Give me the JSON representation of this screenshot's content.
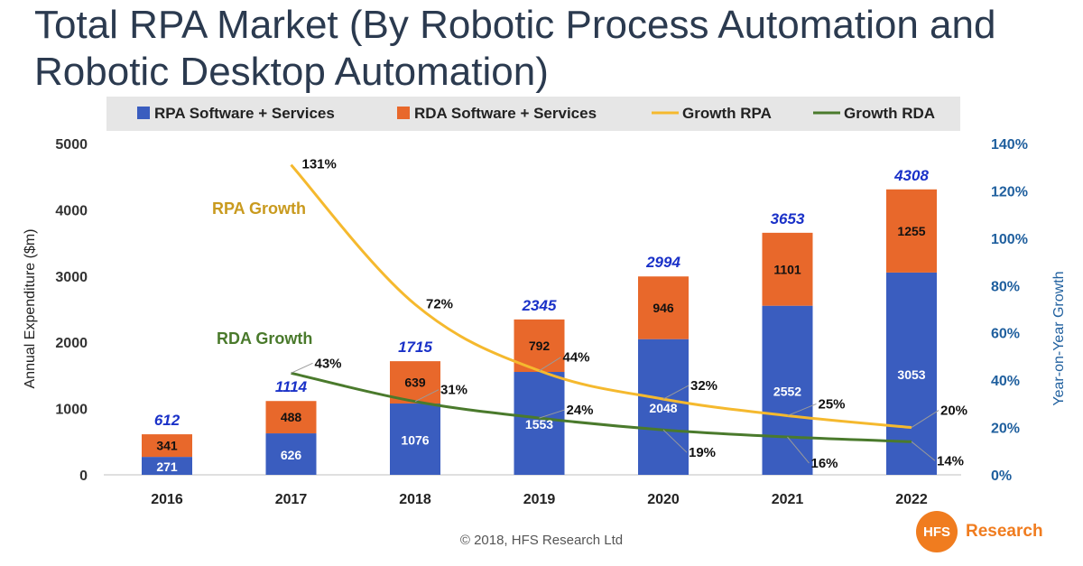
{
  "title": {
    "line1": "Total RPA Market (By Robotic Process Automation and",
    "line2": "Robotic Desktop Automation)"
  },
  "colors": {
    "rpa_bar": "#3a5dbf",
    "rda_bar": "#e8682b",
    "growth_rpa": "#f5b92e",
    "growth_rda": "#4a7a2c",
    "total_label": "#1a31c8",
    "right_axis": "#1f5f9e",
    "annotation_rpa": "#c99a1e"
  },
  "chart_data": {
    "type": "bar",
    "stacked": true,
    "categories": [
      "2016",
      "2017",
      "2018",
      "2019",
      "2020",
      "2021",
      "2022"
    ],
    "series": [
      {
        "name": "RPA Software + Services",
        "kind": "bar",
        "values": [
          271,
          626,
          1076,
          1553,
          2048,
          2552,
          3053
        ]
      },
      {
        "name": "RDA Software + Services",
        "kind": "bar",
        "values": [
          341,
          488,
          639,
          792,
          946,
          1101,
          1255
        ]
      },
      {
        "name": "Growth RPA",
        "kind": "line",
        "axis": "right",
        "values": [
          null,
          131,
          72,
          44,
          32,
          25,
          20
        ],
        "labels": [
          null,
          "131%",
          "72%",
          "44%",
          "32%",
          "25%",
          "20%"
        ]
      },
      {
        "name": "Growth RDA",
        "kind": "line",
        "axis": "right",
        "values": [
          null,
          43,
          31,
          24,
          19,
          16,
          14
        ],
        "labels": [
          null,
          "43%",
          "31%",
          "24%",
          "19%",
          "16%",
          "14%"
        ]
      }
    ],
    "totals": [
      612,
      1114,
      1715,
      2345,
      2994,
      3653,
      4308
    ],
    "ylabel": "Annual Expenditure ($m)",
    "ylim": [
      0,
      5000
    ],
    "yticks": [
      0,
      1000,
      2000,
      3000,
      4000,
      5000
    ],
    "y2label": "Year-on-Year Growth",
    "y2lim": [
      0,
      140
    ],
    "y2ticks": [
      "0%",
      "20%",
      "40%",
      "60%",
      "80%",
      "100%",
      "120%",
      "140%"
    ],
    "legend_position": "top",
    "annotations": [
      "RPA Growth",
      "RDA Growth"
    ]
  },
  "footer": "© 2018, HFS Research Ltd",
  "logo": {
    "mark": "HFS",
    "text": "Research"
  }
}
